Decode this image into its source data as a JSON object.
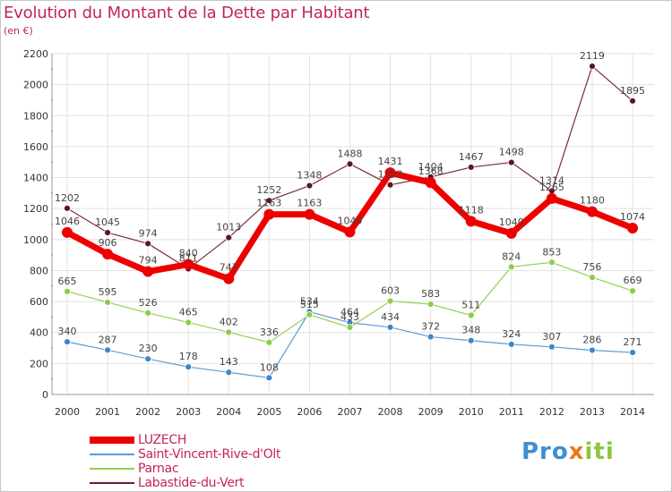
{
  "header": {
    "title": "Evolution du Montant de la Dette par Habitant",
    "subtitle": "(en €)"
  },
  "logo": {
    "part1": "Pro",
    "part2": "x",
    "part3": "iti"
  },
  "colors": {
    "title": "#c0255f",
    "LUZECH": "#ee0000",
    "Saint-Vincent-Rive-d'Olt": "#5b9bd5",
    "Parnac": "#92d050",
    "Labastide-du-Vert": "#6b1f2a"
  },
  "chart_data": {
    "type": "line",
    "title": "Evolution du Montant de la Dette par Habitant",
    "subtitle": "(en €)",
    "xlabel": "",
    "ylabel": "",
    "ylim": [
      0,
      2200
    ],
    "yticks": [
      0,
      200,
      400,
      600,
      800,
      1000,
      1200,
      1400,
      1600,
      1800,
      2000,
      2200
    ],
    "grid": true,
    "legend_position": "bottom-left",
    "x": [
      "2000",
      "2001",
      "2002",
      "2003",
      "2004",
      "2005",
      "2006",
      "2007",
      "2008",
      "2009",
      "2010",
      "2011",
      "2012",
      "2013",
      "2014"
    ],
    "series": [
      {
        "name": "LUZECH",
        "color": "#ee0000",
        "values": [
          1046,
          906,
          794,
          840,
          747,
          1163,
          1163,
          1049,
          1431,
          1368,
          1118,
          1040,
          1265,
          1180,
          1074
        ]
      },
      {
        "name": "Saint-Vincent-Rive-d'Olt",
        "color": "#5b9bd5",
        "values": [
          340,
          287,
          230,
          178,
          143,
          108,
          534,
          464,
          434,
          372,
          348,
          324,
          307,
          286,
          271
        ]
      },
      {
        "name": "Parnac",
        "color": "#92d050",
        "values": [
          665,
          595,
          526,
          465,
          402,
          336,
          515,
          433,
          603,
          583,
          511,
          824,
          853,
          756,
          669
        ]
      },
      {
        "name": "Labastide-du-Vert",
        "color": "#6b1f2a",
        "values": [
          1202,
          1045,
          974,
          811,
          1013,
          1252,
          1348,
          1488,
          1353,
          1404,
          1467,
          1498,
          1314,
          2119,
          1895
        ]
      }
    ]
  }
}
